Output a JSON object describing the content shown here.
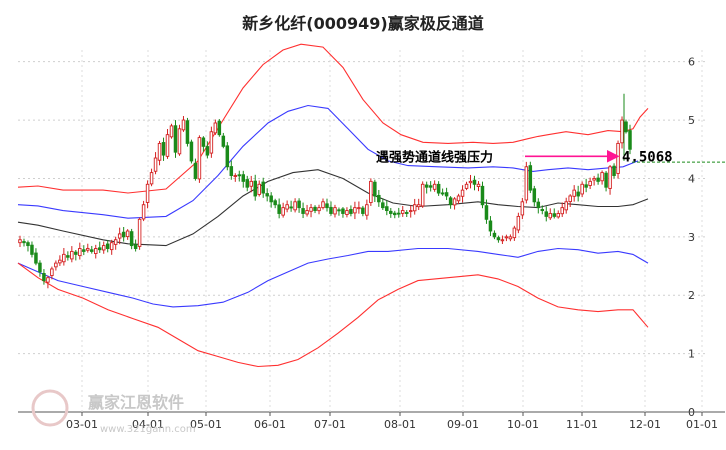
{
  "chart_data": {
    "type": "candlestick",
    "title": "新乡化纤(000949)赢家极反通道",
    "xlabel": "",
    "ylabel": "",
    "ylim": [
      0,
      6.2
    ],
    "yticks": [
      "0",
      "1",
      "2",
      "3",
      "4",
      "5",
      "6"
    ],
    "xticks": [
      "03-01",
      "04-01",
      "05-01",
      "06-01",
      "07-01",
      "08-01",
      "09-01",
      "10-01",
      "11-01",
      "12-01",
      "01-01"
    ],
    "grid": true,
    "colors": {
      "up": "#d42020",
      "down": "#1a8a1a",
      "outer_band": "#ff3030",
      "inner_band": "#3a3aff",
      "mid_line": "#333333",
      "annotation": "#ff1493",
      "last_price_line": "#1a8a1a"
    },
    "annotation": {
      "text": "遇强势通道线强压力",
      "value": "4.5068"
    },
    "watermark": {
      "text": "赢家江恩软件",
      "url": "www.321gann.com",
      "seal": "赢家"
    },
    "closes": [
      2.95,
      2.9,
      2.85,
      2.7,
      2.55,
      2.4,
      2.25,
      2.3,
      2.45,
      2.55,
      2.6,
      2.7,
      2.65,
      2.75,
      2.7,
      2.8,
      2.75,
      2.8,
      2.75,
      2.8,
      2.78,
      2.85,
      2.8,
      2.9,
      2.95,
      3.05,
      3.0,
      3.1,
      2.85,
      2.8,
      3.3,
      3.55,
      3.9,
      4.1,
      4.35,
      4.6,
      4.4,
      4.75,
      4.9,
      4.45,
      4.85,
      5.0,
      4.6,
      4.3,
      4.0,
      4.7,
      4.55,
      4.4,
      4.8,
      4.95,
      4.75,
      4.55,
      4.2,
      4.05,
      4.05,
      4.05,
      3.95,
      3.85,
      3.95,
      3.7,
      3.9,
      3.75,
      3.7,
      3.6,
      3.55,
      3.4,
      3.5,
      3.55,
      3.5,
      3.6,
      3.5,
      3.4,
      3.45,
      3.5,
      3.45,
      3.5,
      3.6,
      3.5,
      3.4,
      3.5,
      3.45,
      3.4,
      3.45,
      3.4,
      3.5,
      3.5,
      3.4,
      3.55,
      3.95,
      3.7,
      3.6,
      3.5,
      3.45,
      3.4,
      3.38,
      3.4,
      3.45,
      3.4,
      3.45,
      3.55,
      3.55,
      3.9,
      3.85,
      3.85,
      3.9,
      3.75,
      3.75,
      3.7,
      3.55,
      3.65,
      3.7,
      3.8,
      3.9,
      3.95,
      3.9,
      3.9,
      3.55,
      3.3,
      3.1,
      3.0,
      2.95,
      2.95,
      3.0,
      3.0,
      3.15,
      3.35,
      3.6,
      4.2,
      3.8,
      3.6,
      3.5,
      3.45,
      3.35,
      3.4,
      3.35,
      3.4,
      3.5,
      3.6,
      3.7,
      3.8,
      3.7,
      3.9,
      3.85,
      3.95,
      4.0,
      3.95,
      4.1,
      3.85,
      4.2,
      4.05,
      4.6,
      5.0,
      4.8,
      4.5
    ]
  },
  "bands": {
    "outer_upper": [
      [
        0,
        3.85
      ],
      [
        20,
        3.87
      ],
      [
        45,
        3.8
      ],
      [
        85,
        3.8
      ],
      [
        110,
        3.75
      ],
      [
        148,
        3.82
      ],
      [
        180,
        4.3
      ],
      [
        205,
        5.0
      ],
      [
        225,
        5.55
      ],
      [
        245,
        5.95
      ],
      [
        265,
        6.2
      ],
      [
        283,
        6.3
      ],
      [
        305,
        6.25
      ],
      [
        325,
        5.9
      ],
      [
        345,
        5.35
      ],
      [
        365,
        4.95
      ],
      [
        383,
        4.75
      ],
      [
        405,
        4.62
      ],
      [
        430,
        4.6
      ],
      [
        455,
        4.62
      ],
      [
        475,
        4.6
      ],
      [
        495,
        4.62
      ],
      [
        510,
        4.68
      ],
      [
        520,
        4.72
      ],
      [
        530,
        4.75
      ],
      [
        548,
        4.8
      ],
      [
        570,
        4.75
      ],
      [
        590,
        4.82
      ],
      [
        605,
        4.8
      ],
      [
        615,
        4.85
      ],
      [
        622,
        5.05
      ],
      [
        630,
        5.2
      ]
    ],
    "inner_upper": [
      [
        0,
        3.55
      ],
      [
        20,
        3.53
      ],
      [
        45,
        3.45
      ],
      [
        85,
        3.38
      ],
      [
        110,
        3.32
      ],
      [
        148,
        3.35
      ],
      [
        175,
        3.62
      ],
      [
        200,
        4.05
      ],
      [
        225,
        4.55
      ],
      [
        250,
        4.95
      ],
      [
        270,
        5.15
      ],
      [
        290,
        5.25
      ],
      [
        310,
        5.2
      ],
      [
        330,
        4.85
      ],
      [
        350,
        4.5
      ],
      [
        370,
        4.3
      ],
      [
        390,
        4.22
      ],
      [
        420,
        4.2
      ],
      [
        450,
        4.18
      ],
      [
        475,
        4.2
      ],
      [
        495,
        4.18
      ],
      [
        515,
        4.12
      ],
      [
        530,
        4.15
      ],
      [
        550,
        4.18
      ],
      [
        570,
        4.15
      ],
      [
        590,
        4.18
      ],
      [
        605,
        4.2
      ],
      [
        620,
        4.3
      ]
    ],
    "mid": [
      [
        0,
        3.25
      ],
      [
        20,
        3.2
      ],
      [
        45,
        3.1
      ],
      [
        85,
        2.95
      ],
      [
        110,
        2.88
      ],
      [
        148,
        2.85
      ],
      [
        175,
        3.05
      ],
      [
        200,
        3.35
      ],
      [
        225,
        3.7
      ],
      [
        250,
        3.95
      ],
      [
        275,
        4.1
      ],
      [
        300,
        4.15
      ],
      [
        325,
        4.0
      ],
      [
        350,
        3.75
      ],
      [
        375,
        3.58
      ],
      [
        400,
        3.52
      ],
      [
        430,
        3.55
      ],
      [
        460,
        3.6
      ],
      [
        480,
        3.55
      ],
      [
        500,
        3.52
      ],
      [
        520,
        3.5
      ],
      [
        540,
        3.58
      ],
      [
        560,
        3.55
      ],
      [
        580,
        3.52
      ],
      [
        600,
        3.52
      ],
      [
        615,
        3.55
      ],
      [
        630,
        3.65
      ]
    ],
    "inner_lower": [
      [
        0,
        2.55
      ],
      [
        20,
        2.4
      ],
      [
        40,
        2.25
      ],
      [
        65,
        2.15
      ],
      [
        90,
        2.05
      ],
      [
        115,
        1.95
      ],
      [
        135,
        1.85
      ],
      [
        155,
        1.8
      ],
      [
        180,
        1.82
      ],
      [
        205,
        1.88
      ],
      [
        230,
        2.05
      ],
      [
        250,
        2.25
      ],
      [
        270,
        2.4
      ],
      [
        290,
        2.55
      ],
      [
        310,
        2.62
      ],
      [
        330,
        2.68
      ],
      [
        350,
        2.75
      ],
      [
        370,
        2.75
      ],
      [
        400,
        2.8
      ],
      [
        430,
        2.8
      ],
      [
        460,
        2.75
      ],
      [
        480,
        2.7
      ],
      [
        500,
        2.65
      ],
      [
        520,
        2.75
      ],
      [
        540,
        2.8
      ],
      [
        560,
        2.78
      ],
      [
        580,
        2.72
      ],
      [
        600,
        2.75
      ],
      [
        615,
        2.7
      ],
      [
        630,
        2.55
      ]
    ],
    "outer_lower": [
      [
        0,
        2.55
      ],
      [
        20,
        2.3
      ],
      [
        40,
        2.1
      ],
      [
        65,
        1.95
      ],
      [
        90,
        1.75
      ],
      [
        115,
        1.6
      ],
      [
        140,
        1.45
      ],
      [
        160,
        1.25
      ],
      [
        180,
        1.05
      ],
      [
        200,
        0.95
      ],
      [
        220,
        0.85
      ],
      [
        240,
        0.78
      ],
      [
        260,
        0.8
      ],
      [
        280,
        0.9
      ],
      [
        300,
        1.1
      ],
      [
        320,
        1.35
      ],
      [
        340,
        1.62
      ],
      [
        360,
        1.92
      ],
      [
        380,
        2.1
      ],
      [
        400,
        2.25
      ],
      [
        430,
        2.3
      ],
      [
        460,
        2.35
      ],
      [
        480,
        2.28
      ],
      [
        500,
        2.15
      ],
      [
        520,
        1.95
      ],
      [
        540,
        1.8
      ],
      [
        560,
        1.75
      ],
      [
        580,
        1.72
      ],
      [
        600,
        1.75
      ],
      [
        615,
        1.75
      ],
      [
        630,
        1.45
      ]
    ]
  }
}
